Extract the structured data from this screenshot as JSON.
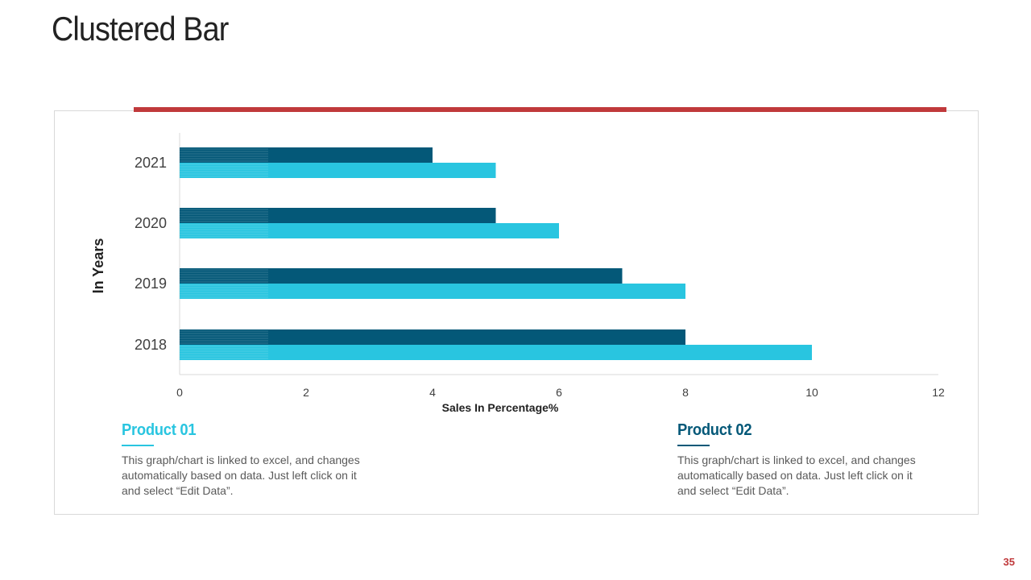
{
  "slide": {
    "title": "Clustered Bar",
    "page_number": "35"
  },
  "colors": {
    "accent_red": "#c0393b",
    "series_dark": "#045878",
    "series_light": "#29c5e0",
    "axis_line": "#d9d9d9",
    "text_dark": "#222222",
    "text_gray": "#595959"
  },
  "chart_data": {
    "type": "bar",
    "orientation": "horizontal",
    "categories": [
      "2021",
      "2020",
      "2019",
      "2018"
    ],
    "series": [
      {
        "name": "Product 01",
        "color": "#045878",
        "values": [
          4,
          5,
          7,
          8
        ]
      },
      {
        "name": "Product 02",
        "color": "#29c5e0",
        "values": [
          5,
          6,
          8,
          10
        ]
      }
    ],
    "xlabel": "Sales In Percentage%",
    "ylabel": "In Years",
    "xlim": [
      0,
      12
    ],
    "xticks": [
      "0",
      "2",
      "4",
      "6",
      "8",
      "10",
      "12"
    ],
    "grid": false
  },
  "legend": [
    {
      "title": "Product 01",
      "text": "This graph/chart is linked to excel, and changes automatically  based on data. Just left click on it and select “Edit Data”."
    },
    {
      "title": "Product 02",
      "text": "This graph/chart is linked to excel, and changes automatically  based on data. Just left click on it and select “Edit Data”."
    }
  ]
}
